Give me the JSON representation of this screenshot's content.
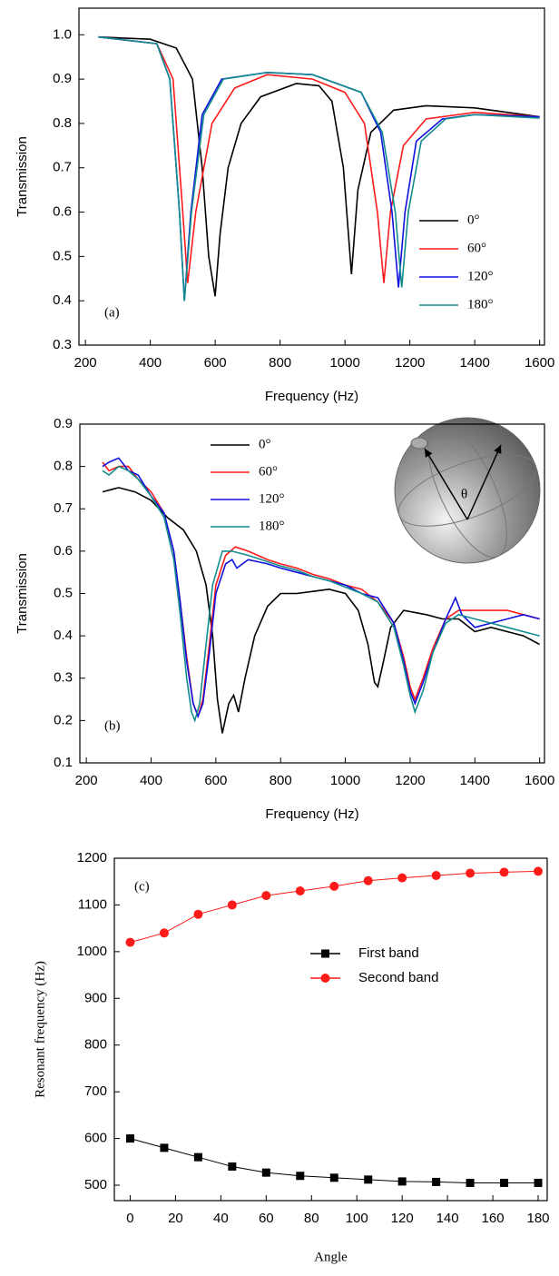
{
  "chart_data": [
    {
      "type": "line",
      "panel_label": "(a)",
      "x_label": "Frequency    (Hz)",
      "y_label": "Transmission",
      "xlim": [
        180,
        1615
      ],
      "ylim": [
        0.3,
        1.06
      ],
      "xticks": [
        200,
        400,
        600,
        800,
        1000,
        1200,
        1400,
        1600
      ],
      "yticks": [
        {
          "value": 1,
          "label": "1.0"
        },
        0.9,
        0.8,
        0.7,
        0.6,
        0.5,
        0.4,
        0.3
      ],
      "legend": "lower right",
      "series": [
        {
          "name": "0°",
          "color": "#000000",
          "x": [
            240,
            400,
            480,
            530,
            560,
            580,
            600,
            615,
            640,
            680,
            740,
            850,
            920,
            960,
            995,
            1020,
            1040,
            1080,
            1150,
            1250,
            1400,
            1600
          ],
          "values": [
            0.995,
            0.99,
            0.97,
            0.9,
            0.7,
            0.5,
            0.41,
            0.55,
            0.7,
            0.8,
            0.86,
            0.89,
            0.885,
            0.85,
            0.7,
            0.46,
            0.65,
            0.78,
            0.83,
            0.84,
            0.835,
            0.815
          ]
        },
        {
          "name": "60°",
          "color": "#ff1a1a",
          "x": [
            240,
            420,
            470,
            500,
            515,
            540,
            590,
            660,
            760,
            900,
            1000,
            1060,
            1100,
            1120,
            1140,
            1180,
            1250,
            1400,
            1600
          ],
          "values": [
            0.995,
            0.98,
            0.9,
            0.6,
            0.44,
            0.6,
            0.8,
            0.88,
            0.91,
            0.9,
            0.87,
            0.8,
            0.6,
            0.44,
            0.6,
            0.75,
            0.81,
            0.825,
            0.815
          ]
        },
        {
          "name": "120°",
          "color": "#1010e0",
          "x": [
            240,
            420,
            460,
            490,
            505,
            525,
            560,
            620,
            760,
            900,
            1050,
            1110,
            1145,
            1165,
            1185,
            1220,
            1300,
            1400,
            1600
          ],
          "values": [
            0.995,
            0.98,
            0.9,
            0.6,
            0.4,
            0.6,
            0.82,
            0.9,
            0.915,
            0.91,
            0.87,
            0.78,
            0.6,
            0.43,
            0.6,
            0.76,
            0.81,
            0.82,
            0.815
          ]
        },
        {
          "name": "180°",
          "color": "#128c8c",
          "x": [
            240,
            420,
            460,
            490,
            505,
            527,
            565,
            625,
            760,
            900,
            1050,
            1115,
            1155,
            1175,
            1195,
            1235,
            1310,
            1400,
            1600
          ],
          "values": [
            0.995,
            0.98,
            0.9,
            0.6,
            0.4,
            0.6,
            0.82,
            0.9,
            0.915,
            0.91,
            0.87,
            0.78,
            0.6,
            0.43,
            0.6,
            0.76,
            0.81,
            0.82,
            0.812
          ]
        }
      ]
    },
    {
      "type": "line",
      "panel_label": "(b)",
      "inset_label": "θ",
      "x_label": "Frequency  (Hz)",
      "y_label": "Transmission",
      "xlim": [
        180,
        1615
      ],
      "ylim": [
        0.1,
        0.9
      ],
      "xticks": [
        200,
        400,
        600,
        800,
        1000,
        1200,
        1400,
        1600
      ],
      "yticks": [
        0.9,
        0.8,
        0.7,
        0.6,
        0.5,
        0.4,
        0.3,
        0.2,
        0.1
      ],
      "legend": "upper center",
      "series": [
        {
          "name": "0°",
          "color": "#000000",
          "x": [
            250,
            300,
            350,
            400,
            450,
            500,
            540,
            570,
            590,
            605,
            620,
            640,
            655,
            670,
            690,
            720,
            760,
            800,
            850,
            900,
            950,
            1000,
            1040,
            1070,
            1090,
            1100,
            1115,
            1140,
            1180,
            1250,
            1300,
            1350,
            1400,
            1450,
            1500,
            1550,
            1600
          ],
          "values": [
            0.74,
            0.75,
            0.74,
            0.72,
            0.68,
            0.65,
            0.6,
            0.52,
            0.4,
            0.25,
            0.17,
            0.24,
            0.26,
            0.22,
            0.3,
            0.4,
            0.47,
            0.5,
            0.5,
            0.505,
            0.51,
            0.5,
            0.46,
            0.38,
            0.29,
            0.28,
            0.33,
            0.42,
            0.46,
            0.45,
            0.44,
            0.44,
            0.41,
            0.42,
            0.41,
            0.4,
            0.38
          ]
        },
        {
          "name": "60°",
          "color": "#ff1a1a",
          "x": [
            250,
            270,
            300,
            330,
            360,
            400,
            440,
            470,
            490,
            510,
            530,
            545,
            560,
            580,
            600,
            630,
            660,
            700,
            760,
            800,
            850,
            900,
            950,
            1000,
            1050,
            1100,
            1150,
            1180,
            1200,
            1215,
            1240,
            1270,
            1310,
            1350,
            1400,
            1450,
            1500,
            1550,
            1600
          ],
          "values": [
            0.81,
            0.79,
            0.8,
            0.8,
            0.77,
            0.74,
            0.69,
            0.6,
            0.48,
            0.35,
            0.24,
            0.21,
            0.25,
            0.38,
            0.52,
            0.59,
            0.61,
            0.6,
            0.58,
            0.57,
            0.56,
            0.545,
            0.535,
            0.52,
            0.51,
            0.48,
            0.43,
            0.35,
            0.28,
            0.25,
            0.3,
            0.37,
            0.44,
            0.46,
            0.46,
            0.46,
            0.46,
            0.45,
            0.44
          ]
        },
        {
          "name": "120°",
          "color": "#1010e0",
          "x": [
            250,
            270,
            300,
            330,
            360,
            400,
            440,
            470,
            490,
            510,
            530,
            545,
            560,
            580,
            600,
            630,
            650,
            665,
            700,
            760,
            800,
            850,
            900,
            950,
            1000,
            1050,
            1100,
            1150,
            1180,
            1200,
            1215,
            1240,
            1270,
            1310,
            1340,
            1360,
            1400,
            1450,
            1500,
            1550,
            1600
          ],
          "values": [
            0.8,
            0.81,
            0.82,
            0.79,
            0.78,
            0.73,
            0.69,
            0.6,
            0.48,
            0.34,
            0.24,
            0.21,
            0.24,
            0.36,
            0.5,
            0.57,
            0.58,
            0.56,
            0.58,
            0.57,
            0.56,
            0.55,
            0.54,
            0.53,
            0.52,
            0.5,
            0.49,
            0.43,
            0.34,
            0.27,
            0.24,
            0.29,
            0.36,
            0.44,
            0.49,
            0.45,
            0.42,
            0.43,
            0.44,
            0.45,
            0.44
          ]
        },
        {
          "name": "180°",
          "color": "#128c8c",
          "x": [
            250,
            270,
            300,
            330,
            360,
            400,
            440,
            470,
            490,
            510,
            525,
            535,
            550,
            570,
            590,
            620,
            650,
            700,
            760,
            800,
            850,
            900,
            950,
            1000,
            1050,
            1100,
            1150,
            1180,
            1200,
            1215,
            1240,
            1270,
            1310,
            1350,
            1400,
            1450,
            1500,
            1550,
            1600
          ],
          "values": [
            0.79,
            0.78,
            0.8,
            0.79,
            0.77,
            0.73,
            0.68,
            0.58,
            0.45,
            0.3,
            0.22,
            0.2,
            0.24,
            0.38,
            0.52,
            0.6,
            0.6,
            0.59,
            0.575,
            0.565,
            0.555,
            0.54,
            0.53,
            0.515,
            0.5,
            0.48,
            0.42,
            0.33,
            0.26,
            0.22,
            0.27,
            0.36,
            0.43,
            0.45,
            0.44,
            0.43,
            0.42,
            0.41,
            0.4
          ]
        }
      ]
    },
    {
      "type": "line",
      "panel_label": "(c)",
      "x_label": "Angle",
      "y_label": "Resonant frequency  (Hz)",
      "xlim": [
        -7,
        184
      ],
      "ylim": [
        467,
        1200
      ],
      "xticks": [
        0,
        20,
        40,
        60,
        80,
        100,
        120,
        140,
        160,
        180
      ],
      "yticks": [
        1200,
        1100,
        1000,
        900,
        800,
        700,
        600,
        500
      ],
      "legend": "center right",
      "x": [
        0,
        15,
        30,
        45,
        60,
        75,
        90,
        105,
        120,
        135,
        150,
        165,
        180
      ],
      "series": [
        {
          "name": "First band",
          "color": "#000000",
          "marker": "square",
          "values": [
            600,
            580,
            560,
            540,
            527,
            520,
            516,
            512,
            508,
            507,
            505,
            505,
            505
          ]
        },
        {
          "name": "Second band",
          "color": "#ff1a1a",
          "marker": "circle",
          "values": [
            1020,
            1040,
            1080,
            1100,
            1120,
            1130,
            1140,
            1152,
            1158,
            1163,
            1168,
            1170,
            1172
          ]
        }
      ]
    }
  ]
}
